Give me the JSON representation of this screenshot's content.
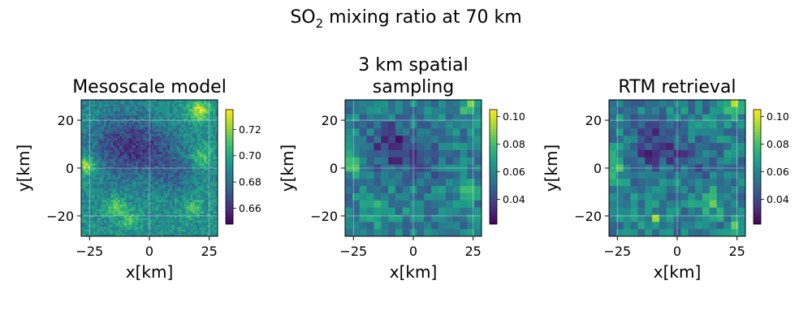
{
  "figure": {
    "title_main": "SO",
    "title_sub": "2",
    "title_rest": " mixing ratio at 70 km"
  },
  "colormap": [
    "#440154",
    "#482878",
    "#3e4989",
    "#31688e",
    "#26828e",
    "#1f9e89",
    "#35b779",
    "#6ece58",
    "#b5de2b",
    "#fde725"
  ],
  "chart_data": [
    {
      "type": "heatmap",
      "title": "Mesoscale model",
      "xlabel": "x[km]",
      "ylabel": "y[km]",
      "xlim": [
        -28.5,
        28.5
      ],
      "ylim": [
        -28.5,
        28.5
      ],
      "xticks": [
        -25,
        0,
        25
      ],
      "yticks": [
        -20,
        0,
        20
      ],
      "grid": true,
      "colorbar": {
        "min": 0.648,
        "max": 0.735,
        "ticks": [
          0.66,
          0.68,
          0.7,
          0.72
        ],
        "tick_labels": [
          "0.66",
          "0.68",
          "0.70",
          "0.72"
        ]
      },
      "grid_size": 60,
      "value_range": [
        0.648,
        0.735
      ],
      "features": [
        {
          "x": -10,
          "y": 9,
          "amp": -0.028,
          "r": 10
        },
        {
          "x": 5,
          "y": 7,
          "amp": -0.012,
          "r": 7
        },
        {
          "x": 12,
          "y": -3,
          "amp": -0.012,
          "r": 6
        },
        {
          "x": -26,
          "y": 1,
          "amp": 0.035,
          "r": 2.5
        },
        {
          "x": 21,
          "y": 24,
          "amp": 0.035,
          "r": 3
        },
        {
          "x": -14,
          "y": -16,
          "amp": 0.03,
          "r": 2.5
        },
        {
          "x": -8,
          "y": -22,
          "amp": 0.02,
          "r": 2.5
        },
        {
          "x": 22,
          "y": 5,
          "amp": 0.02,
          "r": 3
        },
        {
          "x": 18,
          "y": -17,
          "amp": 0.018,
          "r": 3
        }
      ],
      "noise_amp": 0.011,
      "seed": 11
    },
    {
      "type": "heatmap",
      "title": "3 km spatial sampling",
      "title_lines": [
        "3 km spatial",
        "sampling"
      ],
      "xlabel": "x[km]",
      "ylabel": "y[km]",
      "xlim": [
        -28.5,
        28.5
      ],
      "ylim": [
        -28.5,
        28.5
      ],
      "xticks": [
        -25,
        0,
        25
      ],
      "yticks": [
        -20,
        0,
        20
      ],
      "grid": true,
      "colorbar": {
        "min": 0.022,
        "max": 0.105,
        "ticks": [
          0.04,
          0.06,
          0.08,
          0.1
        ],
        "tick_labels": [
          "0.04",
          "0.06",
          "0.08",
          "0.10"
        ]
      },
      "grid_size": 19,
      "value_range": [
        0.022,
        0.105
      ],
      "base": 0.058,
      "features": [
        {
          "x": -8,
          "y": 9,
          "amp": -0.025,
          "r": 7
        },
        {
          "x": 8,
          "y": 2,
          "amp": -0.012,
          "r": 5
        },
        {
          "x": -26,
          "y": 1,
          "amp": 0.022,
          "r": 3
        },
        {
          "x": 24,
          "y": 26,
          "amp": 0.028,
          "r": 3
        },
        {
          "x": 22,
          "y": -10,
          "amp": 0.012,
          "r": 4
        },
        {
          "x": -15,
          "y": -18,
          "amp": 0.014,
          "r": 4
        }
      ],
      "noise_amp": 0.012,
      "seed": 23
    },
    {
      "type": "heatmap",
      "title": "RTM retrieval",
      "xlabel": "x[km]",
      "ylabel": "y[km]",
      "xlim": [
        -28.5,
        28.5
      ],
      "ylim": [
        -28.5,
        28.5
      ],
      "xticks": [
        -25,
        0,
        25
      ],
      "yticks": [
        -20,
        0,
        20
      ],
      "grid": true,
      "colorbar": {
        "min": 0.022,
        "max": 0.105,
        "ticks": [
          0.04,
          0.06,
          0.08,
          0.1
        ],
        "tick_labels": [
          "0.04",
          "0.06",
          "0.08",
          "0.10"
        ]
      },
      "grid_size": 19,
      "value_range": [
        0.022,
        0.105
      ],
      "base": 0.058,
      "features": [
        {
          "x": -8,
          "y": 9,
          "amp": -0.025,
          "r": 7
        },
        {
          "x": 8,
          "y": 2,
          "amp": -0.012,
          "r": 5
        },
        {
          "x": -26,
          "y": 1,
          "amp": 0.022,
          "r": 3
        },
        {
          "x": 24,
          "y": 26,
          "amp": 0.03,
          "r": 3
        },
        {
          "x": 15,
          "y": -14,
          "amp": 0.018,
          "r": 4
        },
        {
          "x": -9,
          "y": -21,
          "amp": 0.045,
          "r": 1.5
        },
        {
          "x": 26,
          "y": -24,
          "amp": 0.02,
          "r": 2.5
        }
      ],
      "noise_amp": 0.013,
      "seed": 37
    }
  ]
}
